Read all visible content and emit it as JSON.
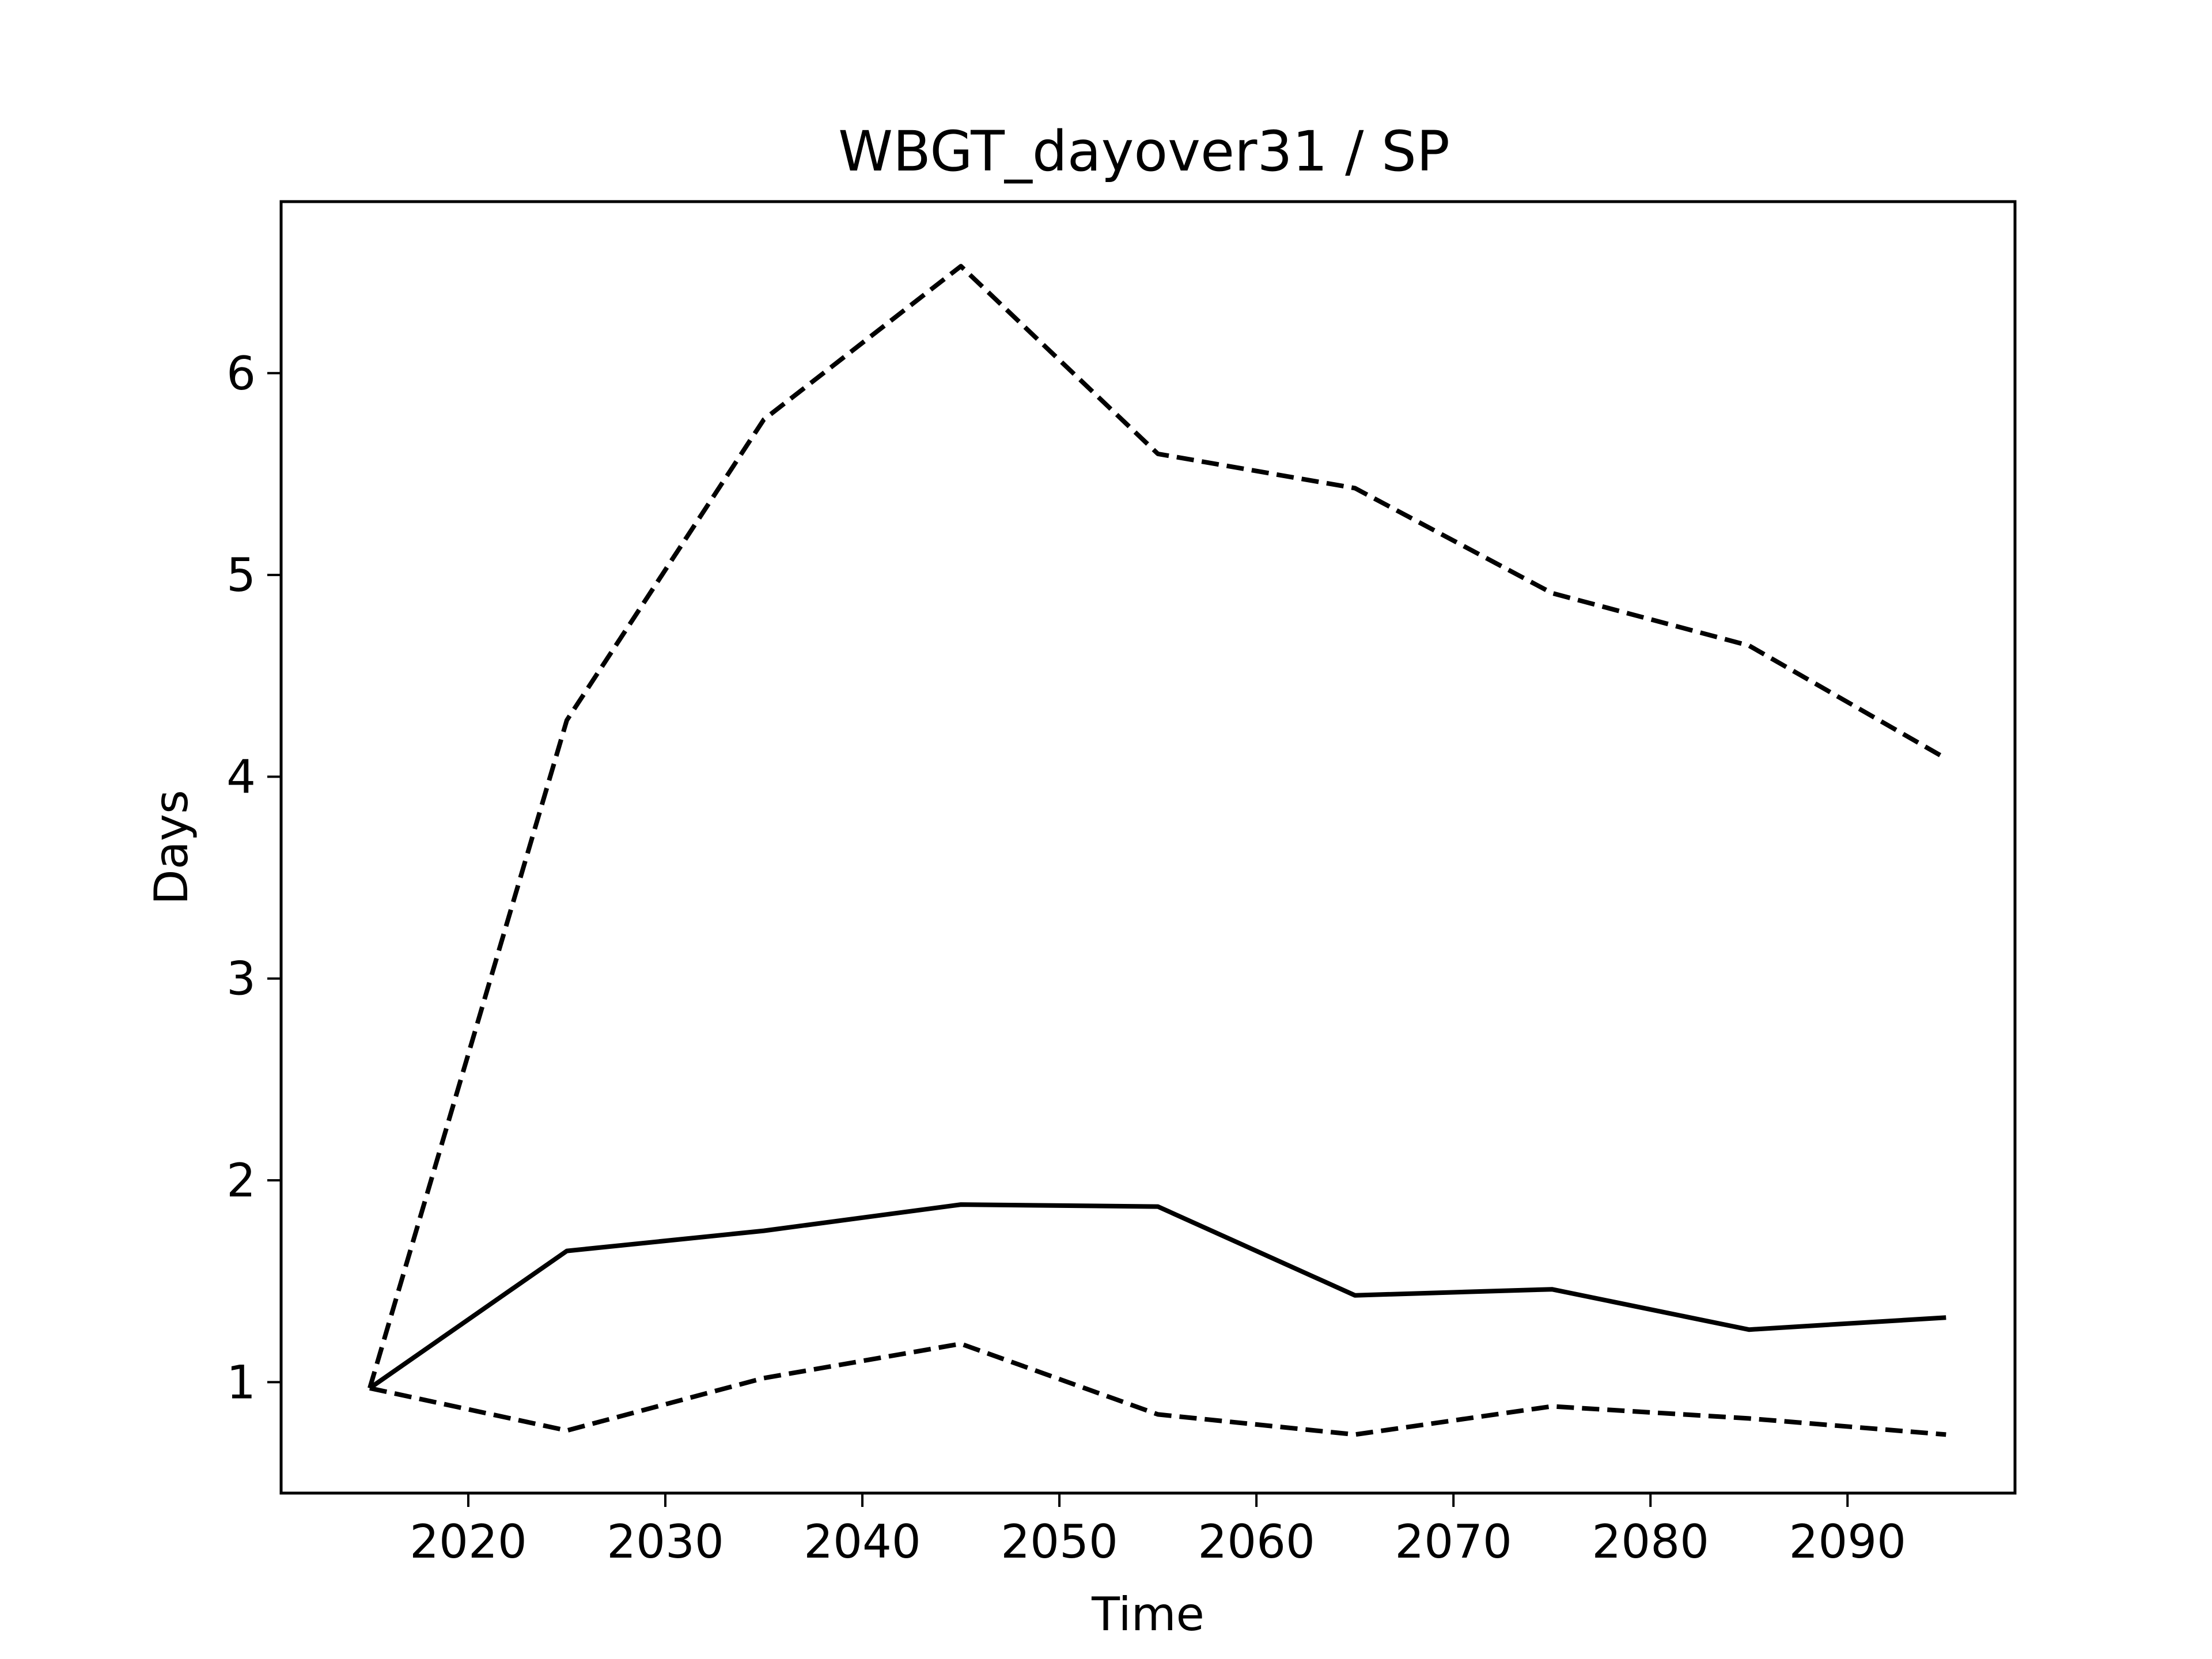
{
  "chart_data": {
    "type": "line",
    "title": "WBGT_dayover31 / SP",
    "xlabel": "Time",
    "ylabel": "Days",
    "xlim": [
      2010.5,
      2098.5
    ],
    "ylim": [
      0.45,
      6.85
    ],
    "xticks": [
      2020,
      2030,
      2040,
      2050,
      2060,
      2070,
      2080,
      2090
    ],
    "yticks": [
      1,
      2,
      3,
      4,
      5,
      6
    ],
    "grid": false,
    "x": [
      2015,
      2025,
      2035,
      2045,
      2055,
      2065,
      2075,
      2085,
      2095
    ],
    "series": [
      {
        "style": "solid",
        "color": "#000000",
        "values": [
          0.97,
          1.65,
          1.75,
          1.88,
          1.87,
          1.43,
          1.46,
          1.26,
          1.32
        ]
      },
      {
        "style": "dashed",
        "color": "#000000",
        "values": [
          0.97,
          4.28,
          5.77,
          6.53,
          5.6,
          5.43,
          4.91,
          4.65,
          4.09
        ]
      },
      {
        "style": "dashed",
        "color": "#000000",
        "values": [
          0.97,
          0.76,
          1.02,
          1.19,
          0.84,
          0.74,
          0.88,
          0.82,
          0.74
        ]
      }
    ]
  }
}
